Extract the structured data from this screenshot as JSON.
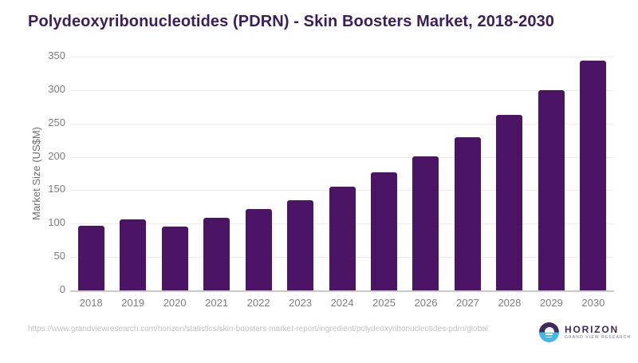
{
  "title": "Polydeoxyribonucleotides (PDRN) - Skin Boosters Market, 2018-2030",
  "source_url": "https://www.grandviewresearch.com/horizon/statistics/skin-boosters-market-report/ingredient/polydeoxyribonucleotides-pdrn/global",
  "logo": {
    "name": "HORIZON",
    "subtitle": "GRAND VIEW RESEARCH",
    "icon": "horizon-sunset-circle-icon"
  },
  "colors": {
    "bar": "#4b1464",
    "title": "#3b1e5a",
    "grid": "#ededed",
    "axis_line": "#c9c9c9",
    "tick_text": "#7d7d7d",
    "ylabel_text": "#6e6e6e",
    "url_text": "#c2c2c2",
    "logo_purple": "#3e2a5c",
    "logo_blue": "#45b7e8",
    "logo_subtitle": "#7a6b93"
  },
  "chart_data": {
    "type": "bar",
    "title": "Polydeoxyribonucleotides (PDRN) - Skin Boosters Market, 2018-2030",
    "categories": [
      "2018",
      "2019",
      "2020",
      "2021",
      "2022",
      "2023",
      "2024",
      "2025",
      "2026",
      "2027",
      "2028",
      "2029",
      "2030"
    ],
    "values": [
      97,
      106,
      96,
      109,
      122,
      135,
      155,
      177,
      201,
      229,
      263,
      300,
      344
    ],
    "xlabel": "",
    "ylabel": "Market Size (US$M)",
    "ylim": [
      0,
      350
    ],
    "ytick_step": 50,
    "yticks": [
      0,
      50,
      100,
      150,
      200,
      250,
      300,
      350
    ],
    "grid": true,
    "legend": false,
    "bar_color": "#4b1464"
  }
}
